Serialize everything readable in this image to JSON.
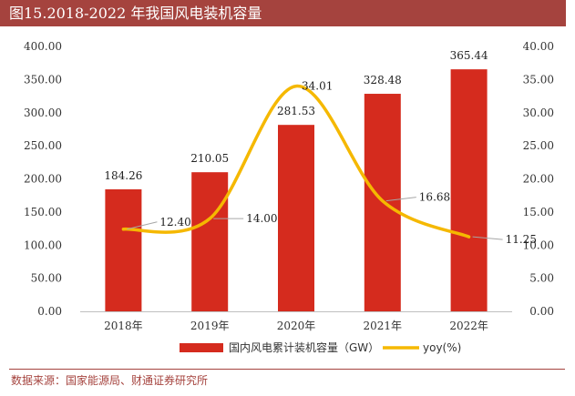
{
  "header": {
    "title": "图15.2018-2022 年我国风电装机容量"
  },
  "source": "数据来源：国家能源局、财通证券研究所",
  "chart_data": {
    "type": "bar",
    "categories": [
      "2018年",
      "2019年",
      "2020年",
      "2021年",
      "2022年"
    ],
    "series": [
      {
        "name": "国内风电累计装机容量（GW）",
        "type": "bar",
        "axis": "left",
        "color": "#d52b1e",
        "values": [
          184.26,
          210.05,
          281.53,
          328.48,
          365.44
        ],
        "labels": [
          "184.26",
          "210.05",
          "281.53",
          "328.48",
          "365.44"
        ]
      },
      {
        "name": "yoy(%)",
        "type": "line",
        "axis": "right",
        "color": "#f5b800",
        "values": [
          12.4,
          14.0,
          34.01,
          16.68,
          11.25
        ],
        "labels": [
          "12.40",
          "14.00",
          "34.01",
          "16.68",
          "11.25"
        ]
      }
    ],
    "y_left": {
      "min": 0,
      "max": 400,
      "step": 50,
      "ticks": [
        "0.00",
        "50.00",
        "100.00",
        "150.00",
        "200.00",
        "250.00",
        "300.00",
        "350.00",
        "400.00"
      ]
    },
    "y_right": {
      "min": 0,
      "max": 40,
      "step": 5,
      "ticks": [
        "0.00",
        "5.00",
        "10.00",
        "15.00",
        "20.00",
        "25.00",
        "30.00",
        "35.00",
        "40.00"
      ]
    },
    "grid": false,
    "legend": "bottom"
  }
}
